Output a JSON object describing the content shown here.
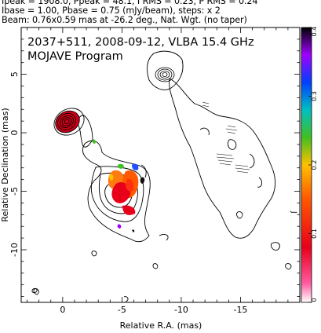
{
  "header": {
    "line1": "Ipeak = 1908.0, Ppeak = 48.1, I RMS = 0.23, P RMS = 0.24",
    "line2": "Ibase = 1.00, Pbase = 0.75 (mJy/beam), steps: x 2",
    "line3": "Beam: 0.76x0.59 mas at -26.2 deg., Nat. Wgt. (no taper)"
  },
  "chart_data": {
    "type": "heatmap",
    "title": "2037+511, 2008-09-12, VLBA 15.4 GHz",
    "subtitle": "MOJAVE Program",
    "xlabel": "Relative R.A. (mas)",
    "ylabel": "Relative Declination (mas)",
    "xlim": [
      3.5,
      -20
    ],
    "ylim": [
      -14.5,
      9
    ],
    "x_ticks": [
      0,
      -5,
      -10,
      -15
    ],
    "y_ticks": [
      5,
      0,
      -5,
      -10
    ],
    "colorbar": {
      "range": [
        0,
        0.4
      ],
      "ticks": [
        0,
        0.1,
        0.2,
        0.3,
        0.4
      ],
      "colors": [
        "#ffffff",
        "#ff5aa0",
        "#e8001a",
        "#ff5a00",
        "#ffc000",
        "#40c020",
        "#00c0c0",
        "#0040ff",
        "#a000ff",
        "#000000"
      ]
    },
    "features": {
      "core": {
        "x": 0,
        "y": 0,
        "peak_Jy_per_beam": 1.908
      },
      "component_ne": {
        "x": -7.7,
        "y": 7.5
      },
      "polarized_region": {
        "x": -5.5,
        "y": -5.5
      },
      "contour_base_mJy_per_beam": 1.0,
      "contour_step_factor": 2
    }
  }
}
